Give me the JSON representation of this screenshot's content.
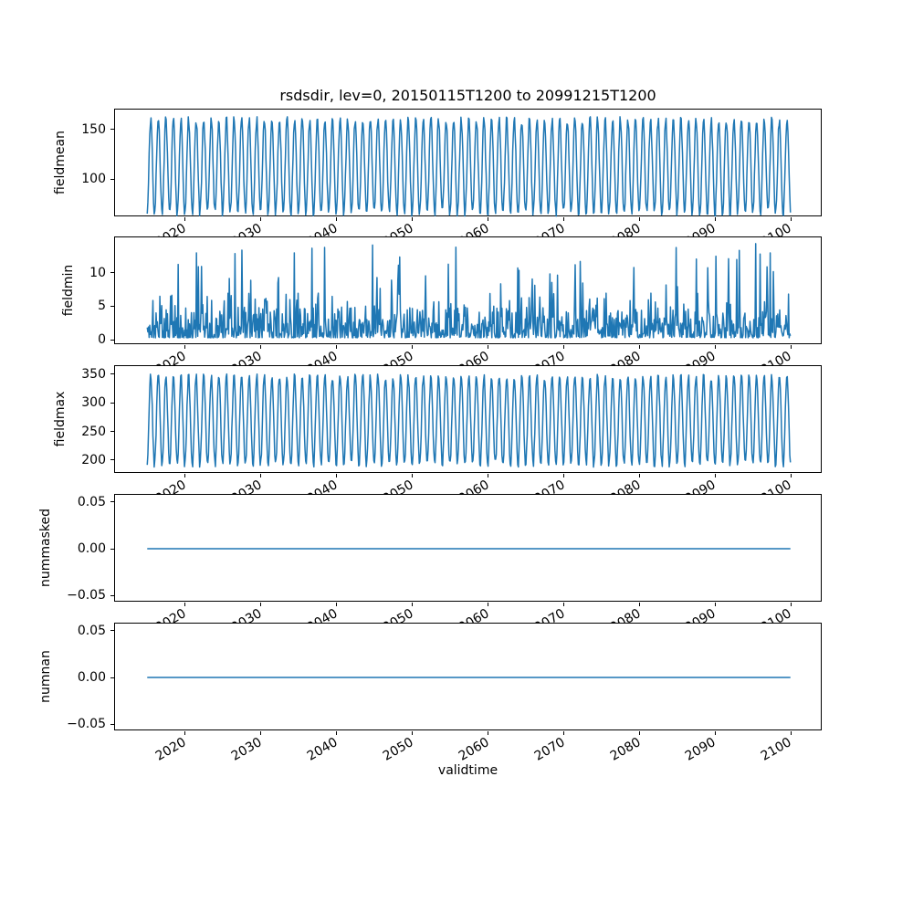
{
  "title": "rsdsdir, lev=0, 20150115T1200 to 20991215T1200",
  "xlabel": "validtime",
  "style": {
    "line_color": "#1f77b4",
    "spine_color": "#000000",
    "text_color": "#000000",
    "background_color": "#ffffff",
    "line_width": 1.5,
    "xtick_label_rotation_deg": 30
  },
  "x_axis": {
    "label": "validtime",
    "tick_values": [
      2020,
      2030,
      2040,
      2050,
      2060,
      2070,
      2080,
      2090,
      2100
    ],
    "tick_labels": [
      "2020",
      "2030",
      "2040",
      "2050",
      "2060",
      "2070",
      "2080",
      "2090",
      "2100"
    ],
    "xlim": [
      2010.79,
      2104.21
    ],
    "data_start": 2015.04,
    "data_end": 2099.96
  },
  "chart_data": [
    {
      "type": "line",
      "ylabel": "fieldmean",
      "ylim": [
        62,
        170
      ],
      "ytick_values": [
        100,
        150
      ],
      "ytick_labels": [
        "100",
        "150"
      ],
      "series": {
        "name": "fieldmean",
        "kind": "seasonal-monthly",
        "seed": 11,
        "points_per_year": 12,
        "baseline": 113,
        "amplitude": 47,
        "peak_year_fraction": 0.5,
        "noise_amplitude": 9,
        "approx_min": 63,
        "approx_max": 170
      }
    },
    {
      "type": "line",
      "ylabel": "fieldmin",
      "ylim": [
        -0.8,
        15.3
      ],
      "ytick_values": [
        0,
        5,
        10
      ],
      "ytick_labels": [
        "0",
        "5",
        "10"
      ],
      "series": {
        "name": "fieldmin",
        "kind": "noisy-spikes",
        "seed": 22,
        "points_per_year": 12,
        "base_range": [
          0.3,
          4.8
        ],
        "medium_spike_range": [
          4.5,
          7.0
        ],
        "rare_spike_range": [
          7.5,
          14.4
        ],
        "medium_spike_prob": 0.08,
        "rare_spike_prob": 0.04,
        "approx_min": 0.1,
        "approx_max": 14.4
      }
    },
    {
      "type": "line",
      "ylabel": "fieldmax",
      "ylim": [
        176,
        364
      ],
      "ytick_values": [
        200,
        250,
        300,
        350
      ],
      "ytick_labels": [
        "200",
        "250",
        "300",
        "350"
      ],
      "series": {
        "name": "fieldmax",
        "kind": "seasonal-monthly",
        "seed": 33,
        "points_per_year": 12,
        "baseline": 269,
        "amplitude": 77,
        "peak_year_fraction": 0.5,
        "noise_amplitude": 14,
        "approx_min": 183,
        "approx_max": 356
      }
    },
    {
      "type": "line",
      "ylabel": "nummasked",
      "ylim": [
        -0.0575,
        0.0575
      ],
      "ytick_values": [
        -0.05,
        0.0,
        0.05
      ],
      "ytick_labels": [
        "−0.05",
        "0.00",
        "0.05"
      ],
      "series": {
        "name": "nummasked",
        "kind": "constant",
        "value": 0.0
      }
    },
    {
      "type": "line",
      "ylabel": "numnan",
      "ylim": [
        -0.0575,
        0.0575
      ],
      "ytick_values": [
        -0.05,
        0.0,
        0.05
      ],
      "ytick_labels": [
        "−0.05",
        "0.00",
        "0.05"
      ],
      "series": {
        "name": "numnan",
        "kind": "constant",
        "value": 0.0
      }
    }
  ]
}
